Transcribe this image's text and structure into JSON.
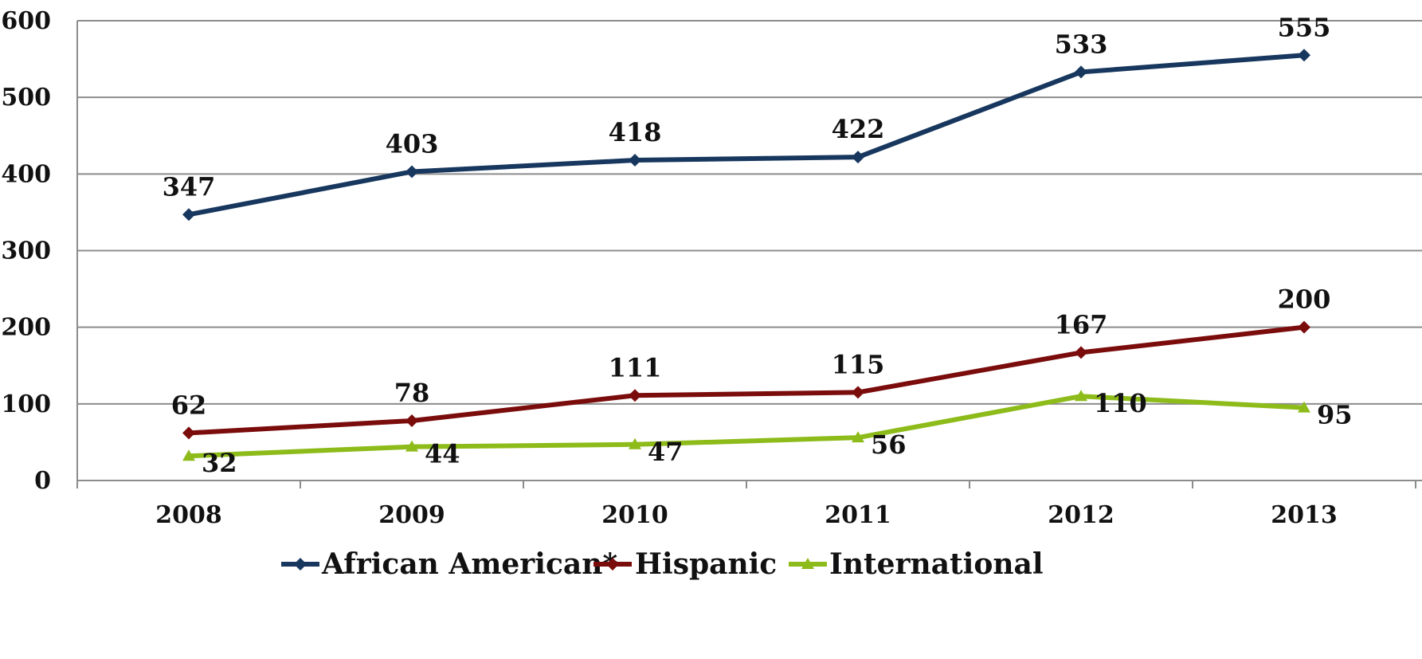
{
  "chart_data": {
    "type": "line",
    "title": "",
    "xlabel": "",
    "ylabel": "",
    "categories": [
      "2008",
      "2009",
      "2010",
      "2011",
      "2012",
      "2013"
    ],
    "ylim": [
      0,
      600
    ],
    "yticks": [
      0,
      100,
      200,
      300,
      400,
      500,
      600
    ],
    "grid": true,
    "legend_position": "bottom",
    "series": [
      {
        "name": "African American*",
        "values": [
          347,
          403,
          418,
          422,
          533,
          555
        ],
        "color": "#17375e",
        "marker": "diamond",
        "label_position": "above"
      },
      {
        "name": "Hispanic",
        "values": [
          62,
          78,
          111,
          115,
          167,
          200
        ],
        "color": "#7b0c0c",
        "marker": "diamond",
        "label_position": "above"
      },
      {
        "name": "International",
        "values": [
          32,
          44,
          47,
          56,
          110,
          95
        ],
        "color": "#8dbb1a",
        "marker": "triangle",
        "label_position": "right"
      }
    ]
  }
}
